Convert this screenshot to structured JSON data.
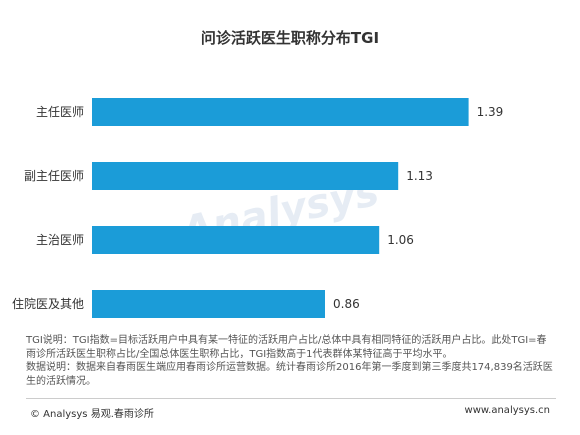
{
  "chart_data": {
    "type": "bar",
    "orientation": "horizontal",
    "title": "问诊活跃医生职称分布TGI",
    "categories": [
      "主任医师",
      "副主任医师",
      "主治医师",
      "住院医及其他"
    ],
    "values": [
      1.39,
      1.13,
      1.06,
      0.86
    ],
    "value_labels": [
      "1.39",
      "1.13",
      "1.06",
      "0.86"
    ],
    "xlim": [
      0,
      1.55
    ],
    "grid": false,
    "legend": "none",
    "bar_color": "#1b9cd8"
  },
  "notes": [
    "TGI说明：TGI指数=目标活跃用户中具有某一特征的活跃用户占比/总体中具有相同特征的活跃用户占比。此处TGI=春雨诊所活跃医生职称占比/全国总体医生职称占比，TGI指数高于1代表群体某特征高于平均水平。",
    "数据说明：数据来自春雨医生端应用春雨诊所运营数据。统计春雨诊所2016年第一季度到第三季度共174,839名活跃医生的活跃情况。"
  ],
  "footer": {
    "left": "© Analysys 易观.春雨诊所",
    "right": "www.analysys.cn"
  },
  "watermark_text": "Analysys"
}
